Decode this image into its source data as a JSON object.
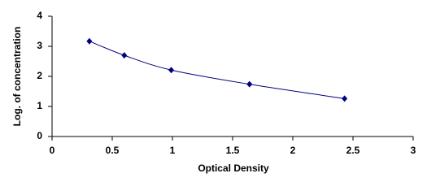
{
  "chart_data": {
    "type": "line",
    "x_label": "Optical Density",
    "y_label": "Log. of concentration",
    "x": [
      0.31,
      0.6,
      0.99,
      1.64,
      2.43
    ],
    "values": [
      3.17,
      2.7,
      2.21,
      1.74,
      1.26
    ],
    "color": "#000080",
    "smooth": true,
    "markers": true,
    "grid": false,
    "xlim": [
      0,
      3
    ],
    "xticks": [
      0,
      0.5,
      1,
      1.5,
      2,
      2.5,
      3
    ],
    "ylim": [
      0,
      4
    ],
    "yticks": [
      0,
      1,
      2,
      3,
      4
    ]
  }
}
